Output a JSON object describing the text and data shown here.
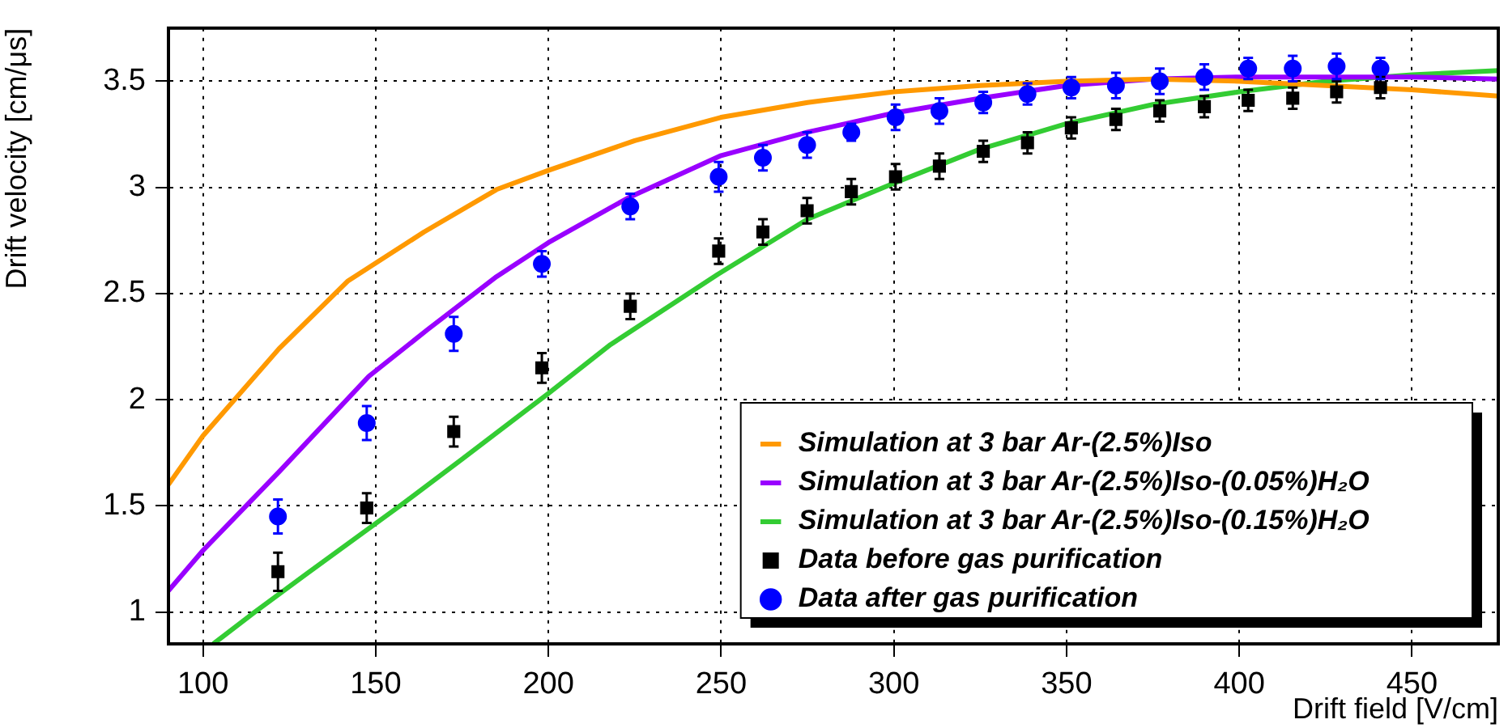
{
  "chart_data": {
    "type": "scatter",
    "xlabel": "Drift field [V/cm]",
    "ylabel": "Drift velocity [cm/μs]",
    "xlim": [
      90,
      475
    ],
    "ylim": [
      0.85,
      3.75
    ],
    "xticks": [
      100,
      150,
      200,
      250,
      300,
      350,
      400,
      450
    ],
    "yticks": [
      1,
      1.5,
      2,
      2.5,
      3,
      3.5
    ],
    "grid": true,
    "legend": "bottom right",
    "series": [
      {
        "name": "Simulation at 3 bar Ar-(2.5%)Iso",
        "type": "line",
        "color": "#ff9900",
        "marker": "none",
        "x": [
          90,
          100,
          122,
          142,
          164,
          185,
          200,
          225,
          250,
          275,
          300,
          325,
          350,
          375,
          400,
          425,
          450,
          475
        ],
        "values": [
          1.6,
          1.83,
          2.24,
          2.56,
          2.79,
          2.99,
          3.08,
          3.22,
          3.33,
          3.4,
          3.45,
          3.48,
          3.5,
          3.51,
          3.5,
          3.48,
          3.46,
          3.43
        ]
      },
      {
        "name": "Simulation at 3 bar Ar-(2.5%)Iso-(0.05%)H₂O",
        "type": "line",
        "color": "#9900ff",
        "marker": "none",
        "x": [
          90,
          100,
          122,
          148,
          165,
          185,
          200,
          223,
          250,
          275,
          300,
          325,
          350,
          375,
          400,
          425,
          450,
          475
        ],
        "values": [
          1.1,
          1.29,
          1.66,
          2.11,
          2.33,
          2.58,
          2.74,
          2.95,
          3.15,
          3.26,
          3.35,
          3.42,
          3.48,
          3.51,
          3.52,
          3.52,
          3.52,
          3.51
        ]
      },
      {
        "name": "Simulation at 3 bar Ar-(2.5%)Iso-(0.15%)H₂O",
        "type": "line",
        "color": "#33cc33",
        "marker": "none",
        "x": [
          103,
          115,
          130,
          157,
          175,
          200,
          218,
          249,
          275,
          300,
          325,
          350,
          375,
          400,
          425,
          450,
          475
        ],
        "values": [
          0.85,
          1.0,
          1.18,
          1.5,
          1.72,
          2.03,
          2.26,
          2.59,
          2.85,
          3.02,
          3.18,
          3.3,
          3.39,
          3.45,
          3.5,
          3.53,
          3.55
        ]
      },
      {
        "name": "Data before gas purification",
        "type": "scatter",
        "color": "#000000",
        "marker": "square",
        "x": [
          121.7,
          147.4,
          172.6,
          198.1,
          223.7,
          249.3,
          262.1,
          274.9,
          287.7,
          300.5,
          313.2,
          325.9,
          338.7,
          351.4,
          364.3,
          377,
          389.9,
          402.6,
          415.5,
          428.2,
          440.9
        ],
        "values": [
          1.19,
          1.49,
          1.85,
          2.15,
          2.44,
          2.7,
          2.79,
          2.89,
          2.98,
          3.05,
          3.1,
          3.17,
          3.21,
          3.28,
          3.32,
          3.36,
          3.38,
          3.41,
          3.42,
          3.45,
          3.47
        ],
        "errors": [
          0.09,
          0.07,
          0.07,
          0.07,
          0.06,
          0.06,
          0.06,
          0.06,
          0.06,
          0.06,
          0.06,
          0.05,
          0.05,
          0.05,
          0.05,
          0.05,
          0.05,
          0.05,
          0.05,
          0.05,
          0.05
        ]
      },
      {
        "name": "Data after gas purification",
        "type": "scatter",
        "color": "#0000ff",
        "marker": "circle",
        "x": [
          121.7,
          147.4,
          172.6,
          198.1,
          223.7,
          249.3,
          262.1,
          274.9,
          287.7,
          300.5,
          313.2,
          325.9,
          338.7,
          351.4,
          364.3,
          377,
          389.9,
          402.6,
          415.5,
          428.2,
          440.9
        ],
        "values": [
          1.45,
          1.89,
          2.31,
          2.64,
          2.91,
          3.05,
          3.14,
          3.2,
          3.26,
          3.33,
          3.36,
          3.4,
          3.44,
          3.47,
          3.48,
          3.5,
          3.52,
          3.56,
          3.56,
          3.57,
          3.56
        ],
        "errors": [
          0.08,
          0.08,
          0.08,
          0.06,
          0.06,
          0.07,
          0.06,
          0.06,
          0.04,
          0.06,
          0.06,
          0.05,
          0.05,
          0.05,
          0.06,
          0.06,
          0.06,
          0.05,
          0.06,
          0.06,
          0.05
        ]
      }
    ]
  }
}
